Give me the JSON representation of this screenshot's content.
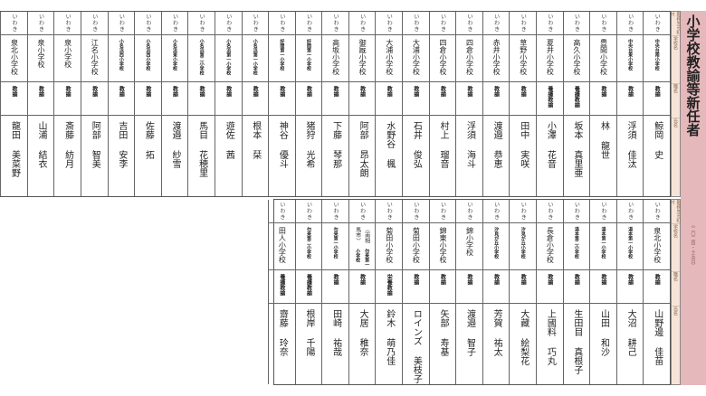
{
  "title": "小学校教諭等新任者",
  "subtitle": "（二〇二四・十五日）",
  "labels": {
    "city": "勤務先市町村",
    "school": "学校名",
    "position": "職名",
    "name": "氏名"
  },
  "colors": {
    "title_bg": "#e5b8bb",
    "label_bg": "#f6e4d8"
  },
  "top_rows": [
    {
      "city": "いわき",
      "school": "中央台南小学校",
      "position": "教諭",
      "surname": "鯨岡",
      "given": "史"
    },
    {
      "city": "いわき",
      "school": "中央台東小学校",
      "position": "教諭",
      "surname": "浮須",
      "given": "佳汰"
    },
    {
      "city": "いわき",
      "school": "豊間小学校",
      "position": "教諭",
      "surname": "林",
      "given": "龍世"
    },
    {
      "city": "いわき",
      "school": "高久小学校",
      "position": "養護教諭",
      "surname": "坂本",
      "given": "真里亜"
    },
    {
      "city": "いわき",
      "school": "夏井小学校",
      "position": "養護教諭",
      "surname": "小澤",
      "given": "花音"
    },
    {
      "city": "いわき",
      "school": "草野小学校",
      "position": "教諭",
      "surname": "田中",
      "given": "実咲"
    },
    {
      "city": "いわき",
      "school": "赤井小学校",
      "position": "教諭",
      "surname": "渡邉",
      "given": "恭恵"
    },
    {
      "city": "いわき",
      "school": "四倉小学校",
      "position": "教諭",
      "surname": "浮須",
      "given": "海斗"
    },
    {
      "city": "いわき",
      "school": "四倉小学校",
      "position": "教諭",
      "surname": "村上",
      "given": "瑠音"
    },
    {
      "city": "いわき",
      "school": "大浦小学校",
      "position": "教諭",
      "surname": "石井",
      "given": "俊弘"
    },
    {
      "city": "いわき",
      "school": "大浦小学校",
      "position": "教諭",
      "surname": "水野谷",
      "given": "楓"
    },
    {
      "city": "いわき",
      "school": "御厩小学校",
      "position": "教諭",
      "surname": "阿部",
      "given": "昂太朗"
    },
    {
      "city": "いわき",
      "school": "高坂小学校",
      "position": "教諭",
      "surname": "下藤",
      "given": "琴那"
    },
    {
      "city": "いわき",
      "school": "好間第一小学校",
      "position": "教諭",
      "surname": "猪狩",
      "given": "光希"
    },
    {
      "city": "いわき",
      "school": "好間第一小学校",
      "position": "教諭",
      "surname": "神谷",
      "given": "優斗"
    },
    {
      "city": "いわき",
      "school": "小名浜第一小学校",
      "position": "教諭",
      "surname": "根本",
      "given": "栞"
    },
    {
      "city": "いわき",
      "school": "小名浜第一小学校",
      "position": "教諭",
      "surname": "遊佐",
      "given": "茜"
    },
    {
      "city": "いわき",
      "school": "小名浜第二小学校",
      "position": "教諭",
      "surname": "馬目",
      "given": "花穂里"
    },
    {
      "city": "いわき",
      "school": "小名浜東小学校",
      "position": "教諭",
      "surname": "渡邉",
      "given": "紗雪"
    },
    {
      "city": "いわき",
      "school": "小名浜西小学校",
      "position": "教諭",
      "surname": "佐藤",
      "given": "拓"
    },
    {
      "city": "いわき",
      "school": "小名浜西小学校",
      "position": "教諭",
      "surname": "吉田",
      "given": "安李"
    },
    {
      "city": "いわき",
      "school": "江名小学校",
      "position": "教諭",
      "surname": "阿部",
      "given": "智美"
    },
    {
      "city": "いわき",
      "school": "泉小学校",
      "position": "教諭",
      "surname": "斎藤",
      "given": "紡月"
    },
    {
      "city": "いわき",
      "school": "泉小学校",
      "position": "教諭",
      "surname": "山浦",
      "given": "結衣"
    },
    {
      "city": "いわき",
      "school": "泉北小学校",
      "position": "教諭",
      "surname": "龍田",
      "given": "美菜野"
    }
  ],
  "bottom_rows": [
    {
      "city": "いわき",
      "school": "泉北小学校",
      "position": "教諭",
      "surname": "山野邊",
      "given": "佳苗"
    },
    {
      "city": "いわき",
      "school": "湯本第一小学校",
      "position": "教諭",
      "surname": "大沼",
      "given": "耕己"
    },
    {
      "city": "いわき",
      "school": "湯本第一小学校",
      "position": "教諭",
      "surname": "山田",
      "given": "和沙"
    },
    {
      "city": "いわき",
      "school": "湯本第二小学校",
      "position": "教諭",
      "surname": "生田目",
      "given": "真根子"
    },
    {
      "city": "いわき",
      "school": "長倉小学校",
      "position": "教諭",
      "surname": "上國料",
      "given": "巧丸"
    },
    {
      "city": "いわき",
      "school": "汐見が丘小学校",
      "position": "教諭",
      "surname": "大藏",
      "given": "絵梨花"
    },
    {
      "city": "いわき",
      "school": "汐見が丘小学校",
      "position": "教諭",
      "surname": "芳賀",
      "given": "祐太"
    },
    {
      "city": "いわき",
      "school": "錦小学校",
      "position": "教諭",
      "surname": "渡邉",
      "given": "智子"
    },
    {
      "city": "いわき",
      "school": "錦東小学校",
      "position": "教諭",
      "surname": "矢部",
      "given": "寿基"
    },
    {
      "city": "いわき",
      "school": "菊田小学校",
      "position": "教諭",
      "surname": "ロインズ",
      "given": "美枝子"
    },
    {
      "city": "いわき",
      "school": "菊田小学校",
      "position": "栄養教諭",
      "surname": "鈴木",
      "given": "萌乃佳"
    },
    {
      "city": "いわき",
      "school": "勿来第一小学校",
      "note": "〈南相馬市〉",
      "position": "教諭",
      "surname": "大居",
      "given": "稚奈"
    },
    {
      "city": "いわき",
      "school": "勿来第一小学校",
      "position": "教諭",
      "surname": "田崎",
      "given": "祐哉"
    },
    {
      "city": "いわき",
      "school": "勿来第二小学校",
      "position": "養護教諭",
      "surname": "根岸",
      "given": "千陽"
    },
    {
      "city": "いわき",
      "school": "田人小学校",
      "position": "養護教諭",
      "surname": "齋藤",
      "given": "玲奈"
    }
  ]
}
